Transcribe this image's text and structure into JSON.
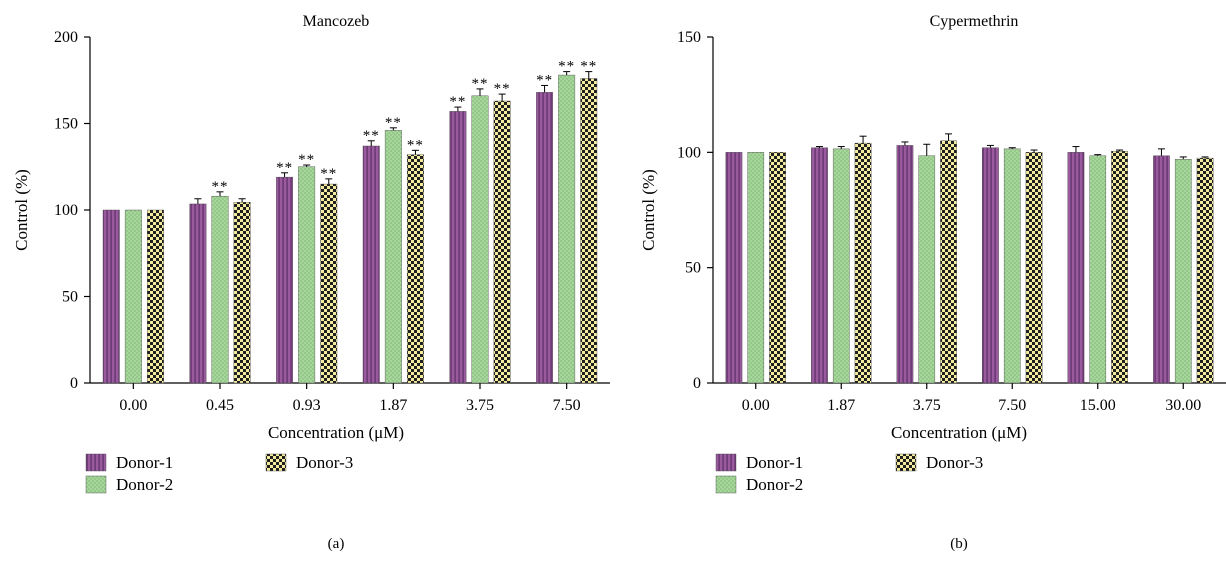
{
  "colors": {
    "donor1": "#9a5b9e",
    "donor1_stripe": "#5e2e66",
    "donor2": "#a6d69a",
    "donor2_dot": "#6aa564",
    "donor3_light": "#f3ec9e",
    "donor3_dark": "#1f1f1f",
    "axis": "#000000"
  },
  "chart_data": [
    {
      "panel_label": "(a)",
      "type": "bar",
      "title": "Mancozeb",
      "xlabel": "Concentration (μM)",
      "ylabel": "Control (%)",
      "ylim": [
        0,
        200
      ],
      "yticks": [
        "0",
        "50",
        "100",
        "150",
        "200"
      ],
      "categories": [
        "0.00",
        "0.45",
        "0.93",
        "1.87",
        "3.75",
        "7.50"
      ],
      "legend": [
        "Donor-1",
        "Donor-2",
        "Donor-3"
      ],
      "grid": false,
      "series": [
        {
          "name": "Donor-1",
          "values": [
            100,
            103.5,
            119,
            137,
            157,
            168
          ],
          "errors": [
            0,
            3,
            2.5,
            3,
            2.5,
            4
          ],
          "markers": [
            "",
            "",
            "**",
            "**",
            "**",
            "**"
          ]
        },
        {
          "name": "Donor-2",
          "values": [
            100,
            108,
            125,
            146,
            166,
            178
          ],
          "errors": [
            0,
            2.5,
            1,
            1.5,
            4,
            2
          ],
          "markers": [
            "",
            "**",
            "**",
            "**",
            "**",
            "**"
          ]
        },
        {
          "name": "Donor-3",
          "values": [
            100,
            104.5,
            115,
            132,
            163,
            176
          ],
          "errors": [
            0,
            2,
            3,
            2.5,
            4,
            4
          ],
          "markers": [
            "",
            "",
            "**",
            "**",
            "**",
            "**"
          ]
        }
      ]
    },
    {
      "panel_label": "(b)",
      "type": "bar",
      "title": "Cypermethrin",
      "xlabel": "Concentration (μM)",
      "ylabel": "Control (%)",
      "ylim": [
        0,
        150
      ],
      "yticks": [
        "0",
        "50",
        "100",
        "150"
      ],
      "categories": [
        "0.00",
        "1.87",
        "3.75",
        "7.50",
        "15.00",
        "30.00"
      ],
      "legend": [
        "Donor-1",
        "Donor-2",
        "Donor-3"
      ],
      "grid": false,
      "series": [
        {
          "name": "Donor-1",
          "values": [
            100,
            102,
            103,
            102,
            100,
            98.5
          ],
          "errors": [
            0,
            0.5,
            1.5,
            1,
            2.5,
            3
          ],
          "markers": [
            "",
            "",
            "",
            "",
            "",
            ""
          ]
        },
        {
          "name": "Donor-2",
          "values": [
            100,
            101.5,
            98.5,
            101.5,
            98.5,
            97
          ],
          "errors": [
            0,
            1,
            5,
            0.5,
            0.5,
            1
          ],
          "markers": [
            "",
            "",
            "",
            "",
            "",
            ""
          ]
        },
        {
          "name": "Donor-3",
          "values": [
            100,
            104,
            105,
            100,
            100.5,
            97.5
          ],
          "errors": [
            0,
            3,
            3,
            1,
            0.5,
            0.5
          ],
          "markers": [
            "",
            "",
            "",
            "",
            "",
            ""
          ]
        }
      ]
    }
  ]
}
